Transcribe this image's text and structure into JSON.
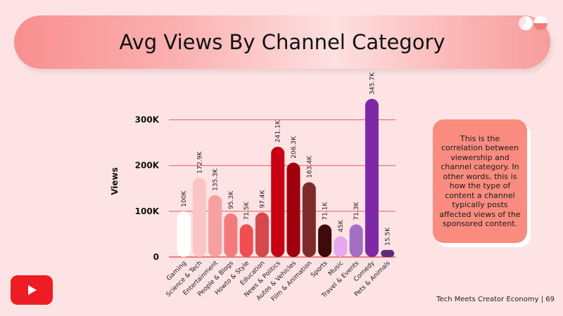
{
  "title": "Avg Views By Channel Category",
  "footer": {
    "text": "Tech Meets Creator Economy",
    "page_number": "69"
  },
  "note": "This is the correlation between viewership and channel category. In other words, this is how the type of content a channel typically posts affected views of the sponsored content.",
  "icons": {
    "logo": "brand-logo-icon",
    "badge": "youtube-play-icon"
  },
  "colors": {
    "background": "#fde3e3",
    "note_card": "#f98c7f",
    "youtube_red": "#ee1c24",
    "gridline": "#e25b5b"
  },
  "chart_data": {
    "type": "bar",
    "title": "",
    "xlabel": "",
    "ylabel": "Views",
    "ylim": [
      0,
      350000
    ],
    "yticks": [
      0,
      100000,
      200000,
      300000
    ],
    "ytick_labels": [
      "0",
      "100K",
      "200K",
      "300K"
    ],
    "grid": true,
    "categories": [
      "Gaming",
      "Science & Tech",
      "Entertainment",
      "People & Blogs",
      "Howto & Style",
      "Education",
      "News & Politics",
      "Autos & Vehicles",
      "Film & Animation",
      "Sports",
      "Music",
      "Travel & Events",
      "Comedy",
      "Pets & Animals"
    ],
    "values": [
      100000,
      172900,
      135300,
      95300,
      71500,
      97400,
      241100,
      206300,
      163400,
      71100,
      45000,
      71300,
      345700,
      15500
    ],
    "value_labels": [
      "100K",
      "172.9K",
      "135.3K",
      "95.3K",
      "71.5K",
      "97.4K",
      "241.1K",
      "206.3K",
      "163.4K",
      "71.1K",
      "45K",
      "71.3K",
      "345.7K",
      "15.5K"
    ],
    "bar_colors": [
      "#ffffff",
      "#fbc5c5",
      "#f6a1a1",
      "#f47b7b",
      "#ef4e53",
      "#d5484c",
      "#c90012",
      "#a0000e",
      "#7e2b2b",
      "#3e0a0c",
      "#e7a7ef",
      "#a46fc3",
      "#7f28a7",
      "#5a2d7a"
    ]
  }
}
